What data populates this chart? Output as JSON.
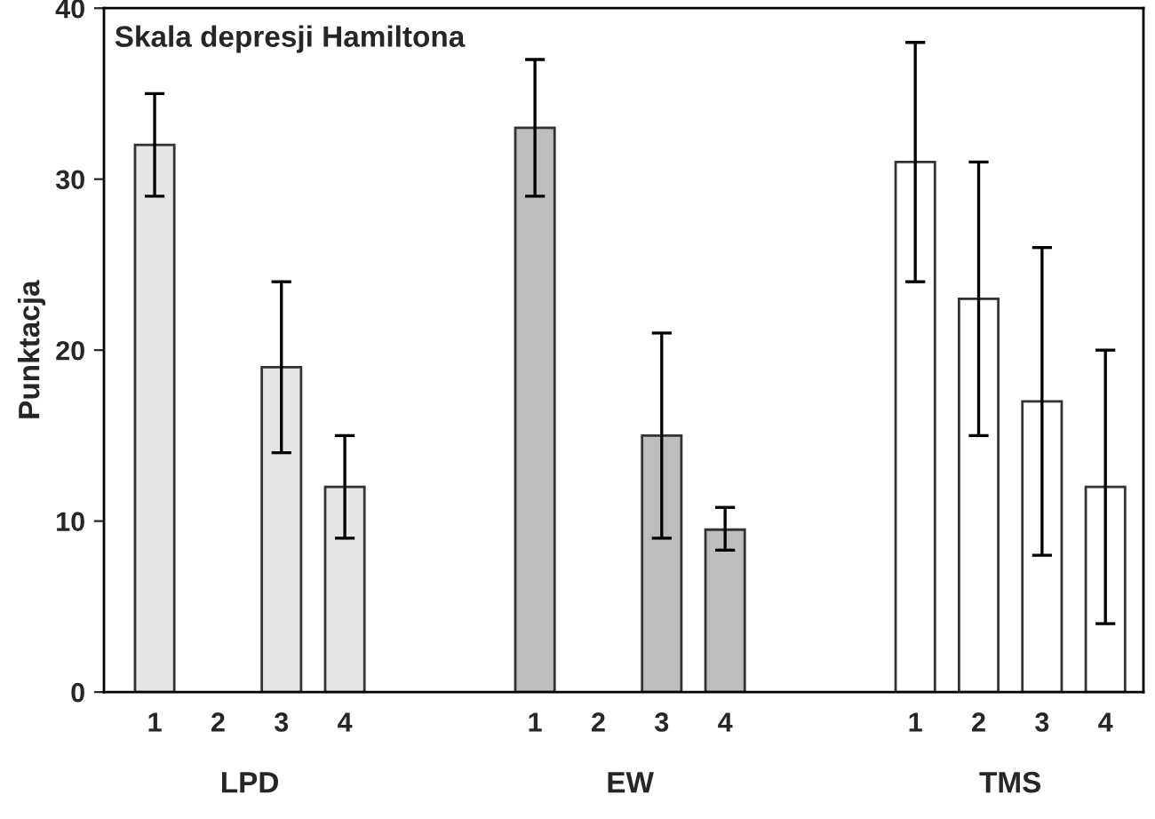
{
  "chart_data": {
    "type": "bar",
    "title": "Skala depresji Hamiltona",
    "ylabel": "Punktacja",
    "categories": [
      "1",
      "2",
      "3",
      "4",
      null,
      null,
      "1",
      "2",
      "3",
      "4",
      null,
      null,
      "1",
      "2",
      "3",
      "4"
    ],
    "values": [
      32,
      null,
      19,
      12,
      null,
      null,
      33,
      null,
      15,
      9.5,
      null,
      null,
      31,
      23,
      17,
      12
    ],
    "errors": [
      [
        29,
        35
      ],
      null,
      [
        14,
        24
      ],
      [
        9,
        15
      ],
      null,
      null,
      [
        29,
        37
      ],
      null,
      [
        9,
        21
      ],
      [
        8.3,
        10.8
      ],
      null,
      null,
      [
        24,
        38
      ],
      [
        15,
        31
      ],
      [
        8,
        26
      ],
      [
        4,
        20
      ]
    ],
    "colors": [
      "#e6e6e6",
      "#e6e6e6",
      "#e6e6e6",
      "#e6e6e6",
      "#ffffff",
      "#ffffff",
      "#bdbdbd",
      "#bdbdbd",
      "#bdbdbd",
      "#bdbdbd",
      "#ffffff",
      "#ffffff",
      "#ffffff",
      "#ffffff",
      "#ffffff",
      "#ffffff"
    ],
    "annotations": [
      "LPD",
      "EW",
      "TMS"
    ],
    "ylim": [
      0,
      40
    ],
    "yticks": [
      0,
      10,
      20,
      30,
      40
    ],
    "grid": false
  }
}
